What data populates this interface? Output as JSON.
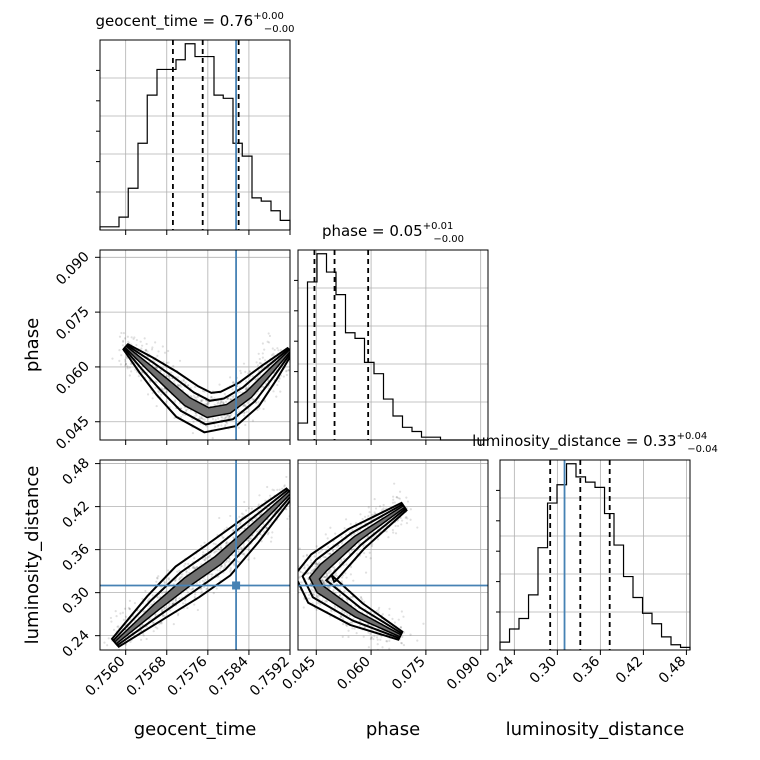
{
  "chart_data": {
    "type": "scatter",
    "subtype": "corner-plot",
    "parameters": [
      {
        "name": "geocent_time",
        "label": "geocent_time",
        "title_prefix": "geocent_time = 0.76",
        "title_plus": "+0.00",
        "title_minus": "−0.00",
        "range": [
          0.7555,
          0.7592
        ],
        "ticks": [
          0.756,
          0.7568,
          0.7576,
          0.7584,
          0.7592
        ],
        "tick_labels": [
          "0.7560",
          "0.7568",
          "0.7576",
          "0.7584",
          "0.7592"
        ],
        "truth": 0.75815,
        "quantiles": [
          0.75692,
          0.7575,
          0.7582
        ],
        "hist_bins": [
          0.7555,
          0.75568,
          0.75587,
          0.75605,
          0.75624,
          0.75642,
          0.75661,
          0.75679,
          0.75698,
          0.75716,
          0.75735,
          0.75753,
          0.75772,
          0.7579,
          0.75809,
          0.75827,
          0.75846,
          0.75864,
          0.75883,
          0.75901,
          0.7592
        ],
        "hist_counts": [
          1,
          1,
          4,
          13,
          27,
          42,
          50,
          50,
          53,
          58,
          54,
          54,
          42,
          41,
          27,
          23,
          10,
          9,
          6,
          3
        ]
      },
      {
        "name": "phase",
        "label": "phase",
        "title_prefix": "phase = 0.05",
        "title_plus": "+0.01",
        "title_minus": "−0.00",
        "range": [
          0.04,
          0.092
        ],
        "ticks": [
          0.045,
          0.06,
          0.075,
          0.09
        ],
        "tick_labels": [
          "0.045",
          "0.060",
          "0.075",
          "0.090"
        ],
        "truth": null,
        "quantiles": [
          0.0445,
          0.05,
          0.0592
        ],
        "hist_bins": [
          0.04,
          0.0426,
          0.0452,
          0.0478,
          0.0504,
          0.053,
          0.0556,
          0.0582,
          0.0608,
          0.0634,
          0.066,
          0.0686,
          0.0712,
          0.0738,
          0.0764,
          0.079,
          0.0816,
          0.0842,
          0.0868,
          0.0894,
          0.092
        ],
        "hist_counts": [
          12,
          112,
          132,
          119,
          103,
          76,
          72,
          55,
          47,
          29,
          17,
          9,
          6,
          2,
          2,
          0,
          0,
          0,
          0,
          0
        ]
      },
      {
        "name": "luminosity_distance",
        "label": "luminosity_distance",
        "title_prefix": "luminosity_distance = 0.33",
        "title_plus": "+0.04",
        "title_minus": "−0.04",
        "range": [
          0.22,
          0.485
        ],
        "ticks": [
          0.24,
          0.3,
          0.36,
          0.42,
          0.48
        ],
        "tick_labels": [
          "0.24",
          "0.30",
          "0.36",
          "0.42",
          "0.48"
        ],
        "truth": 0.31,
        "quantiles": [
          0.29,
          0.332,
          0.373
        ],
        "hist_bins": [
          0.22,
          0.2333,
          0.2465,
          0.2598,
          0.273,
          0.2863,
          0.2995,
          0.3128,
          0.326,
          0.3393,
          0.3525,
          0.3658,
          0.379,
          0.3923,
          0.4055,
          0.4188,
          0.432,
          0.4453,
          0.4585,
          0.4718,
          0.485
        ],
        "hist_counts": [
          3,
          8,
          12,
          21,
          39,
          56,
          63,
          71,
          66,
          64,
          62,
          52,
          40,
          28,
          20,
          14,
          10,
          5,
          2,
          1
        ]
      }
    ],
    "truth_color": "#4682b4",
    "grid": true,
    "legend": "none",
    "samples_2d": [
      {
        "x": "geocent_time",
        "y": "phase",
        "ridge": [
          [
            0.756,
            0.0655
          ],
          [
            0.7564,
            0.0605
          ],
          [
            0.7568,
            0.0555
          ],
          [
            0.7572,
            0.0505
          ],
          [
            0.7576,
            0.0475
          ],
          [
            0.758,
            0.0485
          ],
          [
            0.7584,
            0.0525
          ],
          [
            0.7588,
            0.0585
          ],
          [
            0.7592,
            0.0645
          ]
        ]
      },
      {
        "x": "geocent_time",
        "y": "luminosity_distance",
        "ridge": [
          [
            0.7558,
            0.23
          ],
          [
            0.7566,
            0.28
          ],
          [
            0.7572,
            0.315
          ],
          [
            0.7578,
            0.345
          ],
          [
            0.7584,
            0.385
          ],
          [
            0.7592,
            0.44
          ]
        ]
      },
      {
        "x": "phase",
        "y": "luminosity_distance",
        "ridge": [
          [
            0.068,
            0.24
          ],
          [
            0.056,
            0.27
          ],
          [
            0.046,
            0.305
          ],
          [
            0.0445,
            0.32
          ],
          [
            0.047,
            0.335
          ],
          [
            0.056,
            0.375
          ],
          [
            0.069,
            0.42
          ]
        ]
      }
    ]
  }
}
